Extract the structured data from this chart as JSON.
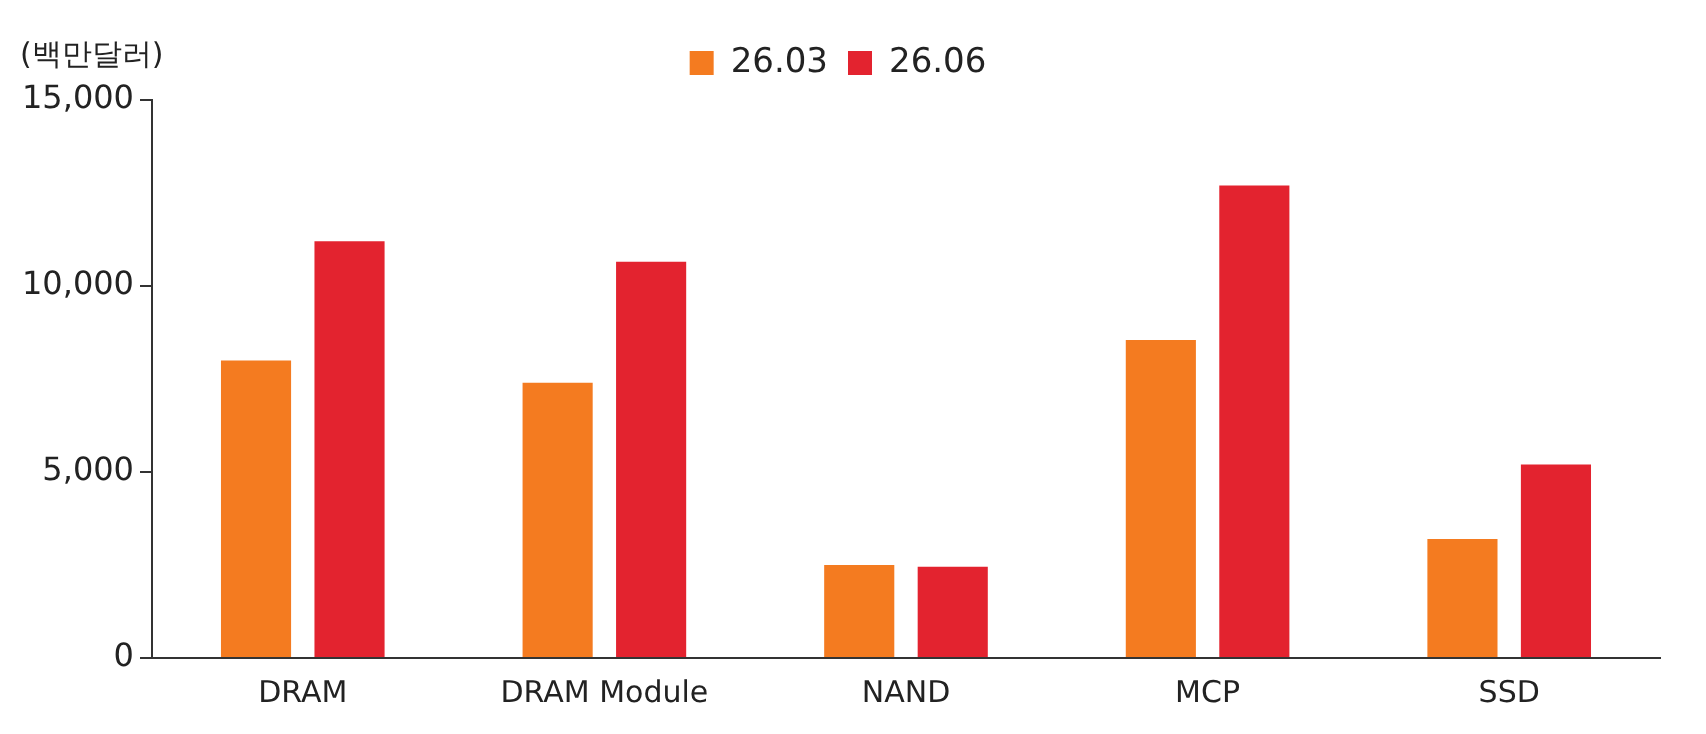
{
  "chart_data": {
    "type": "bar",
    "ylabel": "(백만달러)",
    "categories": [
      "DRAM",
      "DRAM Module",
      "NAND",
      "MCP",
      "SSD"
    ],
    "series": [
      {
        "name": "26.03",
        "color": "#f47b20",
        "values": [
          8000,
          7400,
          2500,
          8550,
          3200
        ]
      },
      {
        "name": "26.06",
        "color": "#e3232f",
        "values": [
          11200,
          10650,
          2450,
          12700,
          5200
        ]
      }
    ],
    "ylim": [
      0,
      15000
    ],
    "yticks": [
      {
        "value": 0,
        "label": "0"
      },
      {
        "value": 5000,
        "label": "5,000"
      },
      {
        "value": 10000,
        "label": "10,000"
      },
      {
        "value": 15000,
        "label": "15,000"
      }
    ],
    "grid": false,
    "legend": "top"
  }
}
